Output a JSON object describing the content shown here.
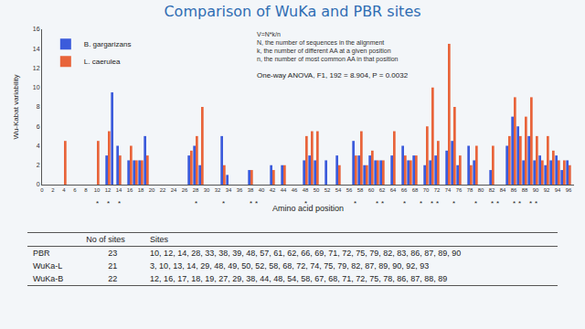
{
  "chart_data": {
    "type": "bar",
    "title": "Comparison of WuKa and PBR sites",
    "x_label": "Amino acid position",
    "y_label": "Wu-Kabat variability",
    "x": [
      4,
      10,
      12,
      13,
      14,
      16,
      17,
      18,
      19,
      27,
      28,
      29,
      33,
      34,
      38,
      42,
      44,
      48,
      49,
      50,
      52,
      54,
      57,
      58,
      59,
      60,
      61,
      62,
      64,
      66,
      67,
      68,
      70,
      71,
      72,
      74,
      75,
      76,
      78,
      79,
      82,
      85,
      86,
      87,
      88,
      89,
      90,
      91,
      92,
      93,
      94,
      95,
      96
    ],
    "series": [
      {
        "name": "B. gargarizans",
        "color": "#3b5bdb",
        "values": [
          null,
          null,
          3,
          9.5,
          4,
          2.5,
          2.5,
          2.5,
          5,
          3,
          4,
          2,
          5,
          1,
          1.5,
          2,
          2,
          2.5,
          3,
          2.5,
          2.5,
          3,
          4.5,
          3,
          2,
          3,
          2.5,
          2.5,
          3,
          4,
          2.5,
          3,
          2,
          2.5,
          3,
          3.5,
          4.5,
          2,
          4,
          2.5,
          1.5,
          4,
          7,
          6,
          2.5,
          5,
          2.5,
          3,
          2,
          2.5,
          3,
          1.5,
          2.5
        ]
      },
      {
        "name": "L. caerulea",
        "color": "#e8643a",
        "values": [
          4.5,
          4.5,
          5.5,
          null,
          3,
          4,
          2.5,
          2.5,
          3,
          3.5,
          5,
          8,
          2,
          null,
          1.5,
          1.5,
          2,
          5,
          5.5,
          5.5,
          null,
          2,
          3,
          5.5,
          2,
          3.5,
          2.5,
          2.5,
          5.5,
          3,
          2.5,
          3,
          6,
          10,
          4.5,
          14.5,
          8,
          3,
          2,
          4,
          4,
          5,
          9,
          5,
          7,
          9,
          5,
          2.5,
          5,
          3.5,
          2.5,
          2.5,
          2
        ]
      }
    ],
    "xlim": [
      0,
      97
    ],
    "xticks": [
      0,
      2,
      4,
      6,
      8,
      10,
      12,
      14,
      16,
      18,
      20,
      22,
      24,
      26,
      28,
      30,
      32,
      34,
      36,
      38,
      40,
      42,
      44,
      46,
      48,
      50,
      52,
      54,
      56,
      58,
      60,
      62,
      64,
      66,
      68,
      70,
      72,
      74,
      76,
      78,
      80,
      82,
      84,
      86,
      88,
      90,
      92,
      94,
      96
    ],
    "ylim": [
      0,
      16
    ],
    "yticks": [
      0,
      2,
      4,
      6,
      8,
      10,
      12,
      14,
      16
    ],
    "grid": false,
    "legend": "top-left",
    "formula": [
      "V=N*k/n",
      "N, the number of sequences in the alignment",
      "k, the number of different AA at a given position",
      "n, the number of most common AA in that position"
    ],
    "annotation": "One-way ANOVA, F1, 192 = 8.904, P = 0.0032",
    "site_marks": {
      "text": "*",
      "x": [
        10,
        12,
        14,
        28,
        33,
        38,
        39,
        48,
        57,
        61,
        62,
        66,
        69,
        71,
        72,
        75,
        79,
        82,
        83,
        86,
        87,
        89,
        90
      ]
    }
  },
  "table": {
    "header": [
      "",
      "No of sites",
      "Sites"
    ],
    "rows": [
      [
        "PBR",
        "23",
        "10, 12, 14, 28, 33, 38, 39, 48, 57, 61, 62, 66, 69, 71, 72, 75, 79, 82, 83, 86, 87, 89, 90"
      ],
      [
        "WuKa-L",
        "21",
        "3, 10, 13, 14, 29, 48, 49, 50, 52, 58, 68, 72, 74, 75, 79, 82, 87, 89, 90, 92, 93"
      ],
      [
        "WuKa-B",
        "22",
        "12, 16, 17, 18, 19, 27, 29, 38, 44, 48, 54, 58, 67, 68, 71, 72, 75, 78, 86, 87, 88, 89"
      ]
    ]
  }
}
